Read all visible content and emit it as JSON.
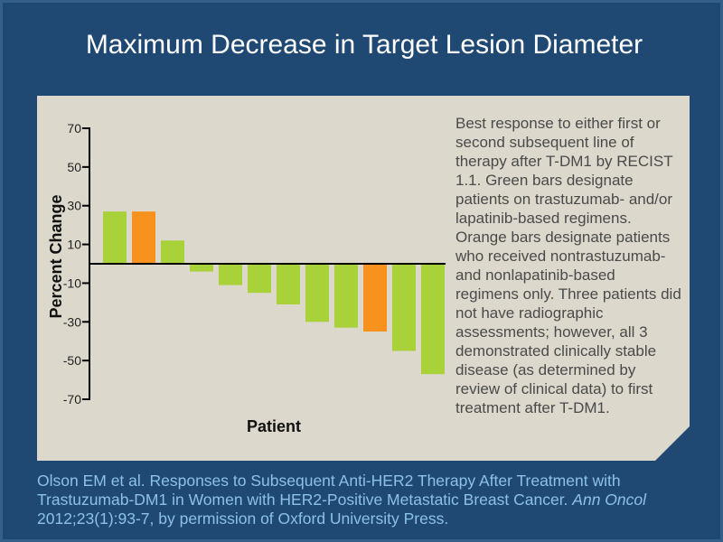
{
  "slide": {
    "title": "Maximum Decrease in Target Lesion Diameter",
    "caption_p1": "Best response to either first or second subsequent line of therapy after T-DM1 by RECIST 1.1. Green bars designate patients on trastuzumab- and/or lapatinib-based regimens.",
    "caption_p2": "Orange bars designate patients who received nontrastuzumab- and nonlapatinib-based regimens only. Three patients did not have radiographic assessments; however, all 3 demonstrated clinically stable disease (as determined by review of clinical data) to first treatment after T-DM1.",
    "citation_a": "Olson EM et al. Responses to Subsequent Anti-HER2 Therapy After Treatment with Trastuzumab-DM1 in Women with HER2-Positive Metastatic Breast Cancer. ",
    "citation_journal": "Ann Oncol",
    "citation_b": " 2012;23(1):93-7, by permission of Oxford University Press."
  },
  "colors": {
    "green": "#a8d13a",
    "orange": "#f7921e",
    "background": "#1f4973",
    "panel": "#dcd8cc"
  },
  "chart_data": {
    "type": "bar",
    "title": "",
    "xlabel": "Patient",
    "ylabel": "Percent Change",
    "ylim": [
      -70,
      70
    ],
    "yticks": [
      70,
      50,
      30,
      10,
      -10,
      -30,
      -50,
      -70
    ],
    "values": [
      27,
      27,
      12,
      -4,
      -11,
      -15,
      -21,
      -30,
      -33,
      -35,
      -45,
      -57
    ],
    "bar_colors": [
      "green",
      "orange",
      "green",
      "green",
      "green",
      "green",
      "green",
      "green",
      "green",
      "orange",
      "green",
      "green"
    ],
    "grid": false,
    "legend": "none"
  }
}
